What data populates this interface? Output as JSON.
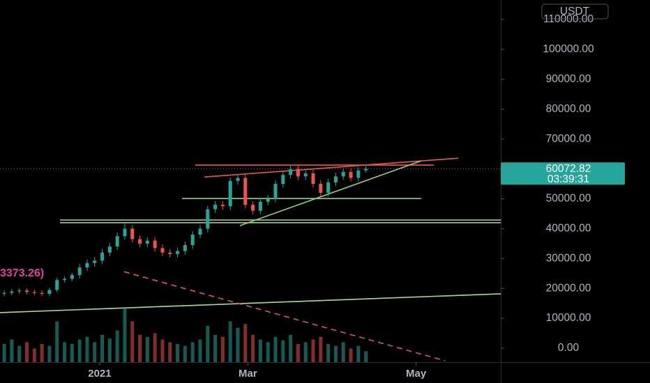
{
  "chart_data": {
    "type": "candlestick",
    "currency": "USDT",
    "countdown": "03:39:31",
    "indicator_label": "3373.26)",
    "x": [
      -38,
      -35,
      -32,
      -29,
      -26,
      -23,
      -20,
      -17,
      -14,
      -11,
      -8,
      -5,
      -2,
      1,
      4,
      7,
      10,
      13,
      16,
      19,
      22,
      25,
      28,
      31,
      34,
      37,
      40,
      43,
      46,
      49,
      52,
      55,
      58,
      61,
      64,
      67,
      70,
      73,
      76,
      79,
      82,
      85,
      88,
      91,
      94,
      97,
      100,
      103,
      106
    ],
    "open": [
      18200,
      18500,
      19000,
      19300,
      18800,
      18500,
      18200,
      19500,
      22800,
      23200,
      24500,
      27000,
      28500,
      29300,
      32000,
      34000,
      37500,
      40000,
      36500,
      35000,
      36000,
      33500,
      32000,
      31500,
      32500,
      34500,
      38000,
      40000,
      46500,
      48000,
      47500,
      56000,
      57000,
      48000,
      46000,
      49000,
      50000,
      55000,
      58000,
      60000,
      57500,
      58500,
      55000,
      52000,
      55500,
      57500,
      59000,
      57000,
      59500
    ],
    "high": [
      19300,
      19800,
      20100,
      20100,
      19600,
      19300,
      20300,
      23600,
      24000,
      25300,
      28200,
      29700,
      30500,
      33200,
      35200,
      38700,
      41800,
      41200,
      37700,
      37200,
      37200,
      34700,
      33200,
      33700,
      35700,
      39200,
      41200,
      47700,
      49200,
      49200,
      57200,
      58200,
      58200,
      49200,
      50200,
      51200,
      56200,
      59200,
      61500,
      61200,
      59700,
      59700,
      56200,
      56700,
      58700,
      60200,
      60200,
      60700,
      61000
    ],
    "low": [
      17400,
      17700,
      18200,
      18000,
      17700,
      17400,
      17400,
      18700,
      22000,
      22400,
      23300,
      25800,
      27300,
      28100,
      30800,
      32800,
      36300,
      35300,
      33800,
      33800,
      32300,
      30800,
      30300,
      30300,
      31300,
      33300,
      36800,
      38800,
      45300,
      46300,
      46300,
      54800,
      46800,
      44800,
      44800,
      47800,
      48800,
      53800,
      56800,
      56300,
      56300,
      53800,
      50800,
      50800,
      54300,
      56300,
      55800,
      55800,
      58700
    ],
    "close": [
      18500,
      19000,
      19300,
      18800,
      18500,
      18200,
      19500,
      22800,
      23200,
      24500,
      27000,
      28500,
      29300,
      32000,
      34000,
      37500,
      40000,
      36500,
      35000,
      36000,
      33500,
      32000,
      31500,
      32500,
      34500,
      38000,
      40000,
      46500,
      48000,
      47500,
      56000,
      57000,
      48000,
      46000,
      49000,
      50000,
      55000,
      58000,
      60000,
      57500,
      58500,
      55000,
      52000,
      55500,
      57500,
      59000,
      57000,
      59500,
      60072.82
    ],
    "volume": [
      20,
      25,
      18,
      22,
      15,
      20,
      18,
      45,
      22,
      20,
      25,
      28,
      22,
      30,
      26,
      35,
      60,
      45,
      30,
      28,
      32,
      25,
      22,
      20,
      18,
      22,
      25,
      40,
      30,
      28,
      45,
      38,
      42,
      30,
      25,
      22,
      28,
      24,
      30,
      20,
      22,
      25,
      28,
      20,
      18,
      22,
      15,
      18,
      12
    ],
    "up_color": "#26a69a",
    "down_color": "#ef5350",
    "xlim": [
      -39.7,
      159.7
    ],
    "xticks": [
      {
        "value": 0,
        "label": "2021"
      },
      {
        "value": 59,
        "label": "Mar"
      },
      {
        "value": 126,
        "label": "May"
      }
    ],
    "ylim": [
      -4662,
      116550
    ],
    "y2lim": [
      0,
      400
    ],
    "yticks": [
      {
        "value": 0,
        "label": "0.00"
      },
      {
        "value": 10000,
        "label": "10000.00"
      },
      {
        "value": 20000,
        "label": "20000.00"
      },
      {
        "value": 30000,
        "label": "30000.00"
      },
      {
        "value": 40000,
        "label": "40000.00"
      },
      {
        "value": 50000,
        "label": "50000.00"
      },
      {
        "value": 60000,
        "label": "60000.00"
      },
      {
        "value": 70000,
        "label": "70000.00"
      },
      {
        "value": 80000,
        "label": "80000.00"
      },
      {
        "value": 90000,
        "label": "90000.00"
      },
      {
        "value": 100000,
        "label": "100000.00"
      },
      {
        "value": 110000,
        "label": "110000.00"
      }
    ],
    "drawings": [
      {
        "color": "#f0554a",
        "dashed": false,
        "points": [
          [
            38,
            61300
          ],
          [
            133,
            61300
          ]
        ]
      },
      {
        "color": "#f0554a",
        "dashed": false,
        "points": [
          [
            41.7,
            57300
          ],
          [
            142.8,
            63600
          ]
        ]
      },
      {
        "color": "#8fd47a",
        "dashed": false,
        "points": [
          [
            32.8,
            50100
          ],
          [
            128,
            50100
          ]
        ]
      },
      {
        "color": "#8fd47a",
        "dashed": false,
        "points": [
          [
            -15.8,
            42900
          ],
          [
            159.7,
            42900
          ]
        ]
      },
      {
        "color": "#8fd47a",
        "dashed": false,
        "points": [
          [
            -15.8,
            42000
          ],
          [
            159.7,
            42000
          ]
        ]
      },
      {
        "color": "#8fd47a",
        "dashed": false,
        "points": [
          [
            55.8,
            41000
          ],
          [
            128,
            62700
          ]
        ]
      },
      {
        "color": "#a8e08a",
        "dashed": false,
        "points": [
          [
            -39.7,
            11900
          ],
          [
            159.7,
            18200
          ]
        ]
      },
      {
        "color": "#e8574d",
        "dashed": true,
        "points": [
          [
            9.7,
            25600
          ],
          [
            137.5,
            -4200
          ]
        ]
      }
    ]
  }
}
